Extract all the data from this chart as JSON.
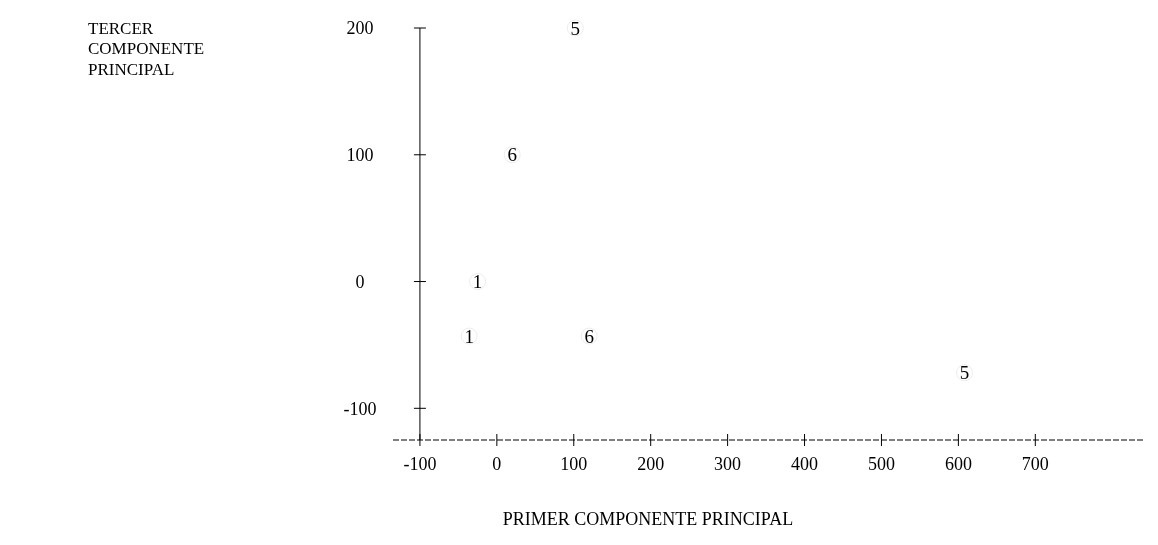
{
  "chart_data": {
    "type": "scatter",
    "xlabel": "PRIMER COMPONENTE PRINCIPAL",
    "annotations": [
      "TERCER COMPONENTE PRINCIPAL"
    ],
    "xlim": [
      -135,
      840
    ],
    "ylim": [
      -125,
      200
    ],
    "xticks": [
      -100,
      0,
      100,
      200,
      300,
      400,
      500,
      600,
      700
    ],
    "yticks": [
      -100,
      0,
      100,
      200
    ],
    "grid": false,
    "series": [
      {
        "name": "1",
        "color": "#000000",
        "x": [
          -25,
          -36
        ],
        "values": [
          0,
          -43
        ]
      },
      {
        "name": "5",
        "color": "#000000",
        "x": [
          102,
          608
        ],
        "values": [
          200,
          -72
        ]
      },
      {
        "name": "6",
        "color": "#000000",
        "x": [
          20,
          120
        ],
        "values": [
          100,
          -43
        ]
      }
    ]
  }
}
